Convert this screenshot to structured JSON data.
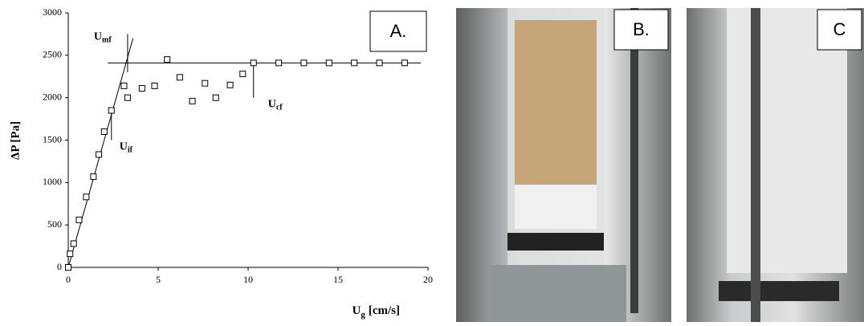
{
  "chart_data": {
    "type": "scatter",
    "panel_label": "A.",
    "x_label": {
      "base": "U",
      "sub": "g",
      "unit": "[cm/s]"
    },
    "y_label": "ΔP [Pa]",
    "x": [
      0,
      0.1,
      0.3,
      0.6,
      1.0,
      1.4,
      1.7,
      2.0,
      2.4,
      3.1,
      3.3,
      4.1,
      4.8,
      5.5,
      6.2,
      6.9,
      7.6,
      8.2,
      9.0,
      9.7,
      10.3,
      11.7,
      13.1,
      14.5,
      15.9,
      17.3,
      18.7
    ],
    "values": [
      0,
      160,
      280,
      560,
      830,
      1070,
      1330,
      1600,
      1850,
      2140,
      2000,
      2110,
      2140,
      2450,
      2240,
      1960,
      2170,
      2000,
      2150,
      2280,
      2410,
      2410,
      2410,
      2410,
      2410,
      2410,
      2410
    ],
    "color": "#000000",
    "lines": [
      {
        "x": [
          0,
          3.6
        ],
        "y": [
          0,
          2700
        ]
      },
      {
        "x": [
          2.2,
          19.6
        ],
        "y": [
          2410,
          2410
        ]
      }
    ],
    "annotations": [
      {
        "base": "U",
        "sub": "mf",
        "x": 3.3,
        "y": [
          2300,
          2750
        ]
      },
      {
        "base": "U",
        "sub": "if",
        "x": 2.4,
        "y": [
          1500,
          1850
        ]
      },
      {
        "base": "U",
        "sub": "cf",
        "x": 10.3,
        "y": [
          2000,
          2410
        ]
      }
    ],
    "xlim": [
      0,
      20
    ],
    "xticks": [
      0,
      5,
      10,
      15,
      20
    ],
    "ylim": [
      0,
      3000
    ],
    "yticks": [
      0,
      500,
      1000,
      1500,
      2000,
      2500,
      3000
    ],
    "grid": false
  },
  "photo_labels": [
    "B.",
    "C"
  ]
}
